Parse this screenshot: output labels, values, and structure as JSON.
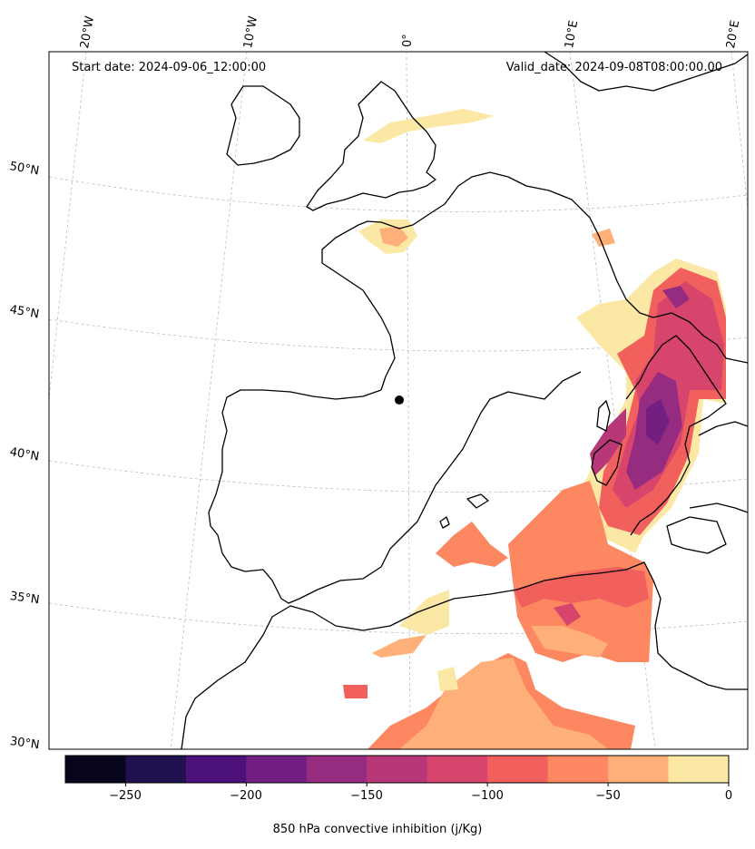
{
  "header": {
    "start_date": "Start date: 2024-09-06_12:00:00",
    "valid_date": "Valid_date: 2024-09-08T08:00:00.00"
  },
  "map": {
    "projection": "conic",
    "gridlines": "dashed, light gray",
    "lon_labels": [
      "20°W",
      "10°W",
      "0°",
      "10°E",
      "20°E"
    ],
    "lat_labels": [
      "50°N",
      "45°N",
      "40°N",
      "35°N",
      "30°N"
    ],
    "field": "850 hPa convective inhibition",
    "marker": "black dot near 0°, 42°N"
  },
  "colorbar": {
    "label": "850 hPa convective inhibition (j/Kg)",
    "tick_labels": [
      "−250",
      "−200",
      "−150",
      "−100",
      "−50",
      "0"
    ],
    "levels": [
      -275,
      -250,
      -225,
      -200,
      -175,
      -150,
      -125,
      -100,
      -75,
      -50,
      -25,
      0
    ],
    "colors": [
      "#07051b",
      "#221150",
      "#4d117b",
      "#721f81",
      "#952c80",
      "#b73779",
      "#d8456c",
      "#f1605d",
      "#fc8761",
      "#feb078",
      "#fce8a5"
    ]
  }
}
